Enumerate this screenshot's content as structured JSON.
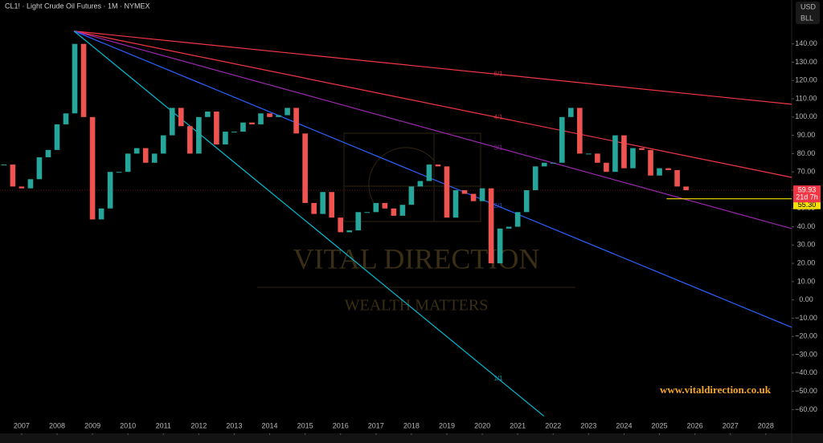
{
  "chart_data": {
    "type": "candlestick",
    "title": "CL1! · Light Crude Oil Futures · 1M · NYMEX",
    "currency": "USD",
    "unit": "BLL",
    "watermark": "VITAL DIRECTION",
    "watermark_subtitle": "WEALTH MATTERS",
    "website": "www.vitaldirection.co.uk",
    "x": [
      2006.5,
      2006.75,
      2007,
      2007.25,
      2007.5,
      2007.75,
      2008,
      2008.25,
      2008.5,
      2008.75,
      2009,
      2009.25,
      2009.5,
      2009.75,
      2010,
      2010.25,
      2010.5,
      2010.75,
      2011,
      2011.25,
      2011.5,
      2011.75,
      2012,
      2012.25,
      2012.5,
      2012.75,
      2013,
      2013.25,
      2013.5,
      2013.75,
      2014,
      2014.25,
      2014.5,
      2014.75,
      2015,
      2015.25,
      2015.5,
      2015.75,
      2016,
      2016.25,
      2016.5,
      2016.75,
      2017,
      2017.25,
      2017.5,
      2017.75,
      2018,
      2018.25,
      2018.5,
      2018.75,
      2019,
      2019.25,
      2019.5,
      2019.75,
      2020,
      2020.25,
      2020.5,
      2020.75,
      2021,
      2021.25,
      2021.5,
      2021.75,
      2022,
      2022.25,
      2022.5,
      2022.75,
      2023,
      2023.25,
      2023.5,
      2023.75,
      2024,
      2024.25,
      2024.5,
      2024.75,
      2025,
      2025.25,
      2025.5,
      2025.75
    ],
    "series": [
      {
        "name": "CL1!",
        "up_color": "#26a69a",
        "down_color": "#ef5350",
        "values": [
          74,
          62,
          61,
          66,
          78,
          82,
          96,
          102,
          140,
          100,
          44,
          50,
          70,
          70,
          80,
          83,
          75,
          80,
          90,
          105,
          95,
          80,
          100,
          103,
          85,
          92,
          92,
          97,
          96,
          102,
          100,
          101,
          105,
          91,
          53,
          47,
          59,
          45,
          37,
          38,
          48,
          48,
          53,
          50,
          46,
          52,
          62,
          65,
          74,
          73,
          45,
          60,
          58,
          54,
          61,
          20,
          39,
          40,
          48,
          60,
          73,
          75,
          75,
          100,
          105,
          80,
          80,
          75,
          70,
          90,
          72,
          83,
          82,
          68,
          72,
          71,
          62,
          60
        ]
      }
    ],
    "trendlines": [
      {
        "label": "6/1",
        "color": "#f23645",
        "start": [
          2008.48,
          147
        ],
        "end": [
          2028.73,
          107
        ]
      },
      {
        "label": "4/1",
        "color": "#f23645",
        "start": [
          2008.48,
          147
        ],
        "end": [
          2028.73,
          67
        ]
      },
      {
        "label": "3/1",
        "color": "#9c27b0",
        "start": [
          2008.48,
          147
        ],
        "end": [
          2028.73,
          39
        ]
      },
      {
        "label": "2/1",
        "color": "#2962ff",
        "start": [
          2008.48,
          147
        ],
        "end": [
          2028.73,
          -15
        ]
      },
      {
        "label": "1/1",
        "color": "#00bcd4",
        "start": [
          2008.48,
          147
        ],
        "end": [
          2021.74,
          -63.6
        ]
      }
    ],
    "last_price": {
      "value": 59.93,
      "label": "59.93",
      "countdown": "21d 7h",
      "color": "#f23645"
    },
    "level": {
      "value": 55.3,
      "label": "55.30",
      "start": 2025.2,
      "color": "#f5e000"
    },
    "xlim": [
      2006.39,
      2028.73
    ],
    "ylim": [
      -73,
      164
    ],
    "xticks": [
      2007,
      2008,
      2009,
      2010,
      2011,
      2012,
      2013,
      2014,
      2015,
      2016,
      2017,
      2018,
      2019,
      2020,
      2021,
      2022,
      2023,
      2024,
      2025,
      2026,
      2027,
      2028
    ],
    "yticks": [
      {
        "value": 140,
        "label": "140.00"
      },
      {
        "value": 130,
        "label": "130.00"
      },
      {
        "value": 120,
        "label": "120.00"
      },
      {
        "value": 110,
        "label": "110.00"
      },
      {
        "value": 100,
        "label": "100.00"
      },
      {
        "value": 90,
        "label": "90.00"
      },
      {
        "value": 80,
        "label": "80.00"
      },
      {
        "value": 70,
        "label": "70.00"
      },
      {
        "value": 60,
        "label": "60.00"
      },
      {
        "value": 50,
        "label": "50.00"
      },
      {
        "value": 40,
        "label": "40.00"
      },
      {
        "value": 30,
        "label": "30.00"
      },
      {
        "value": 20,
        "label": "20.00"
      },
      {
        "value": 10,
        "label": "10.00"
      },
      {
        "value": 0,
        "label": "0.00"
      },
      {
        "value": -10,
        "label": "−10.00"
      },
      {
        "value": -20,
        "label": "−20.00"
      },
      {
        "value": -30,
        "label": "−30.00"
      },
      {
        "value": -40,
        "label": "−40.00"
      },
      {
        "value": -50,
        "label": "−50.00"
      },
      {
        "value": -60,
        "label": "−60.00"
      }
    ]
  }
}
